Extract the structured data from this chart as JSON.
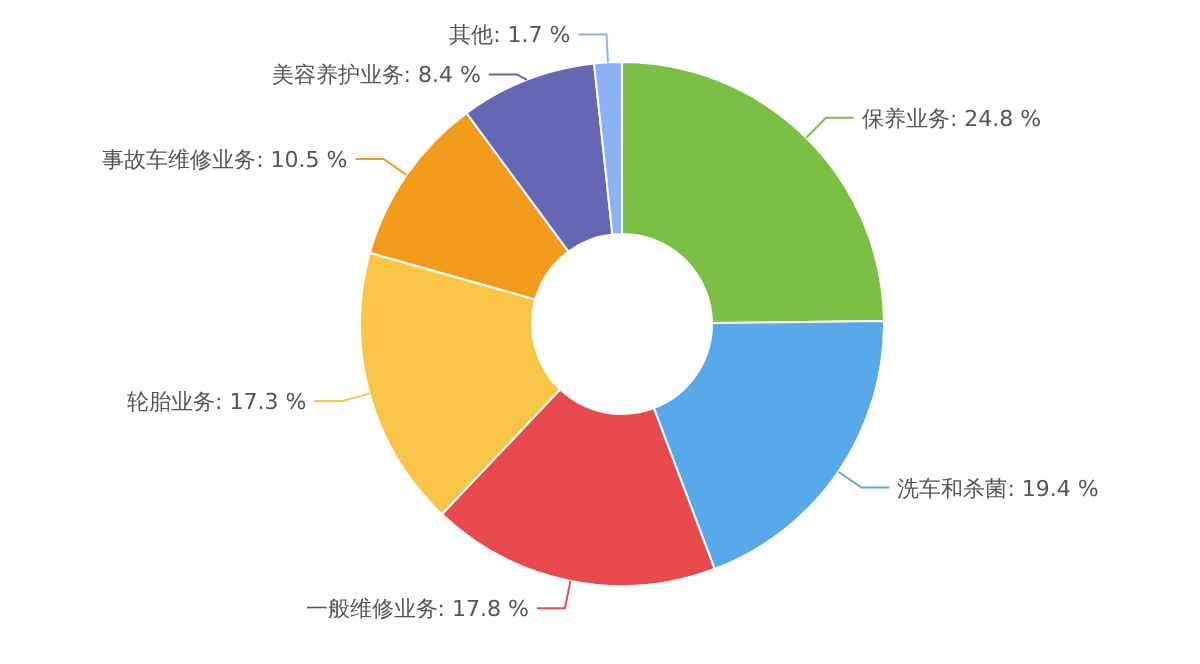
{
  "chart_data": {
    "type": "donut",
    "categories": [
      "保养业务",
      "洗车和杀菌",
      "一般维修业务",
      "轮胎业务",
      "事故车维修业务",
      "美容养护业务",
      "其他"
    ],
    "values": [
      24.8,
      19.4,
      17.8,
      17.3,
      10.5,
      8.4,
      1.7
    ],
    "value_labels": [
      "24.8 %",
      "19.4 %",
      "17.8 %",
      "17.3 %",
      "10.5 %",
      "8.4 %",
      "1.7 %"
    ],
    "colors": [
      "#7cc043",
      "#58a9e9",
      "#e8494d",
      "#f8c547",
      "#f39c1c",
      "#6567b5",
      "#8cb1f5"
    ]
  }
}
